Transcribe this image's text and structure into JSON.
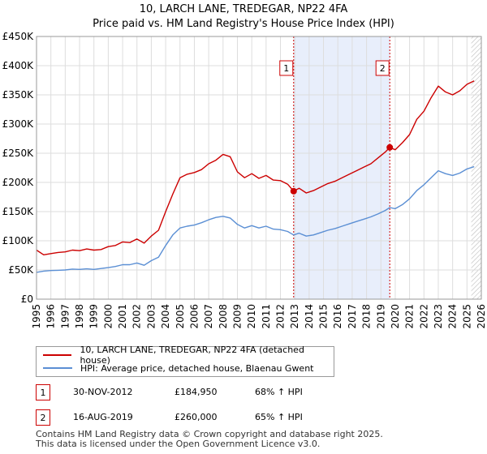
{
  "chart_data": {
    "type": "line",
    "title": "10, LARCH LANE, TREDEGAR, NP22 4FA",
    "subtitle": "Price paid vs. HM Land Registry's House Price Index (HPI)",
    "xlim": [
      1995,
      2026
    ],
    "ylim": [
      0,
      450000
    ],
    "y_ticks": [
      0,
      50000,
      100000,
      150000,
      200000,
      250000,
      300000,
      350000,
      400000,
      450000
    ],
    "y_tick_labels": [
      "£0",
      "£50K",
      "£100K",
      "£150K",
      "£200K",
      "£250K",
      "£300K",
      "£350K",
      "£400K",
      "£450K"
    ],
    "x_ticks": [
      1995,
      1996,
      1997,
      1998,
      1999,
      2000,
      2001,
      2002,
      2003,
      2004,
      2005,
      2006,
      2007,
      2008,
      2009,
      2010,
      2011,
      2012,
      2013,
      2014,
      2015,
      2016,
      2017,
      2018,
      2019,
      2020,
      2021,
      2022,
      2023,
      2024,
      2025,
      2026
    ],
    "x_tick_labels": [
      "1995",
      "1996",
      "1997",
      "1998",
      "1999",
      "2000",
      "2001",
      "2002",
      "2003",
      "2004",
      "2005",
      "2006",
      "2007",
      "2008",
      "2009",
      "2010",
      "2011",
      "2012",
      "2013",
      "2014",
      "2015",
      "2016",
      "2017",
      "2018",
      "2019",
      "2020",
      "2021",
      "2022",
      "2023",
      "2024",
      "2025",
      "2026"
    ],
    "shaded_region": [
      2012.92,
      2019.62
    ],
    "hatched_region": [
      2025.3,
      2026
    ],
    "series": [
      {
        "name": "10, LARCH LANE, TREDEGAR, NP22 4FA (detached house)",
        "color": "#cc0000",
        "points": [
          [
            1995.0,
            84000
          ],
          [
            1995.5,
            76000
          ],
          [
            1996.0,
            78000
          ],
          [
            1996.5,
            80000
          ],
          [
            1997.0,
            81000
          ],
          [
            1997.5,
            84000
          ],
          [
            1998.0,
            83000
          ],
          [
            1998.5,
            86000
          ],
          [
            1999.0,
            84000
          ],
          [
            1999.5,
            85000
          ],
          [
            2000.0,
            90000
          ],
          [
            2000.5,
            92000
          ],
          [
            2001.0,
            98000
          ],
          [
            2001.5,
            97000
          ],
          [
            2002.0,
            103000
          ],
          [
            2002.5,
            96000
          ],
          [
            2003.0,
            108000
          ],
          [
            2003.5,
            118000
          ],
          [
            2004.0,
            150000
          ],
          [
            2004.5,
            180000
          ],
          [
            2005.0,
            208000
          ],
          [
            2005.5,
            214000
          ],
          [
            2006.0,
            217000
          ],
          [
            2006.5,
            222000
          ],
          [
            2007.0,
            232000
          ],
          [
            2007.5,
            238000
          ],
          [
            2008.0,
            248000
          ],
          [
            2008.5,
            244000
          ],
          [
            2009.0,
            218000
          ],
          [
            2009.5,
            208000
          ],
          [
            2010.0,
            215000
          ],
          [
            2010.5,
            207000
          ],
          [
            2011.0,
            212000
          ],
          [
            2011.5,
            204000
          ],
          [
            2012.0,
            203000
          ],
          [
            2012.5,
            197000
          ],
          [
            2012.92,
            184950
          ],
          [
            2013.3,
            190000
          ],
          [
            2013.8,
            182000
          ],
          [
            2014.3,
            186000
          ],
          [
            2014.8,
            192000
          ],
          [
            2015.3,
            198000
          ],
          [
            2015.8,
            202000
          ],
          [
            2016.3,
            208000
          ],
          [
            2016.8,
            214000
          ],
          [
            2017.3,
            220000
          ],
          [
            2017.8,
            226000
          ],
          [
            2018.3,
            232000
          ],
          [
            2018.8,
            242000
          ],
          [
            2019.3,
            252000
          ],
          [
            2019.62,
            260000
          ],
          [
            2020.0,
            256000
          ],
          [
            2020.5,
            268000
          ],
          [
            2021.0,
            282000
          ],
          [
            2021.5,
            308000
          ],
          [
            2022.0,
            322000
          ],
          [
            2022.5,
            345000
          ],
          [
            2023.0,
            365000
          ],
          [
            2023.5,
            355000
          ],
          [
            2024.0,
            350000
          ],
          [
            2024.5,
            357000
          ],
          [
            2025.0,
            368000
          ],
          [
            2025.5,
            374000
          ]
        ]
      },
      {
        "name": "HPI: Average price, detached house, Blaenau Gwent",
        "color": "#5b8fd4",
        "points": [
          [
            1995.0,
            46000
          ],
          [
            1995.5,
            48000
          ],
          [
            1996.0,
            49000
          ],
          [
            1996.5,
            49500
          ],
          [
            1997.0,
            50000
          ],
          [
            1997.5,
            51500
          ],
          [
            1998.0,
            51000
          ],
          [
            1998.5,
            52000
          ],
          [
            1999.0,
            51000
          ],
          [
            1999.5,
            52500
          ],
          [
            2000.0,
            54000
          ],
          [
            2000.5,
            56000
          ],
          [
            2001.0,
            59000
          ],
          [
            2001.5,
            59000
          ],
          [
            2002.0,
            62000
          ],
          [
            2002.5,
            58000
          ],
          [
            2003.0,
            66000
          ],
          [
            2003.5,
            72000
          ],
          [
            2004.0,
            92000
          ],
          [
            2004.5,
            110000
          ],
          [
            2005.0,
            122000
          ],
          [
            2005.5,
            125000
          ],
          [
            2006.0,
            127000
          ],
          [
            2006.5,
            131000
          ],
          [
            2007.0,
            136000
          ],
          [
            2007.5,
            140000
          ],
          [
            2008.0,
            142000
          ],
          [
            2008.5,
            139000
          ],
          [
            2009.0,
            128000
          ],
          [
            2009.5,
            122000
          ],
          [
            2010.0,
            126000
          ],
          [
            2010.5,
            122000
          ],
          [
            2011.0,
            125000
          ],
          [
            2011.5,
            120000
          ],
          [
            2012.0,
            119000
          ],
          [
            2012.5,
            116000
          ],
          [
            2012.92,
            110000
          ],
          [
            2013.3,
            113000
          ],
          [
            2013.8,
            108000
          ],
          [
            2014.3,
            110000
          ],
          [
            2014.8,
            114000
          ],
          [
            2015.3,
            118000
          ],
          [
            2015.8,
            121000
          ],
          [
            2016.3,
            125000
          ],
          [
            2016.8,
            129000
          ],
          [
            2017.3,
            133000
          ],
          [
            2017.8,
            137000
          ],
          [
            2018.3,
            141000
          ],
          [
            2018.8,
            146000
          ],
          [
            2019.3,
            152000
          ],
          [
            2019.62,
            157000
          ],
          [
            2020.0,
            155000
          ],
          [
            2020.5,
            162000
          ],
          [
            2021.0,
            172000
          ],
          [
            2021.5,
            186000
          ],
          [
            2022.0,
            196000
          ],
          [
            2022.5,
            208000
          ],
          [
            2023.0,
            220000
          ],
          [
            2023.5,
            215000
          ],
          [
            2024.0,
            212000
          ],
          [
            2024.5,
            216000
          ],
          [
            2025.0,
            223000
          ],
          [
            2025.5,
            227000
          ]
        ]
      }
    ],
    "sales": [
      {
        "label": "1",
        "x": 2012.92,
        "price": 184950
      },
      {
        "label": "2",
        "x": 2019.62,
        "price": 260000
      }
    ]
  },
  "legend": {
    "series1_label": "10, LARCH LANE, TREDEGAR, NP22 4FA (detached house)",
    "series2_label": "HPI: Average price, detached house, Blaenau Gwent"
  },
  "transactions": [
    {
      "num": "1",
      "date": "30-NOV-2012",
      "price": "£184,950",
      "hpi": "68% ↑ HPI"
    },
    {
      "num": "2",
      "date": "16-AUG-2019",
      "price": "£260,000",
      "hpi": "65% ↑ HPI"
    }
  ],
  "footer": {
    "line1": "Contains HM Land Registry data © Crown copyright and database right 2025.",
    "line2": "This data is licensed under the Open Government Licence v3.0."
  }
}
